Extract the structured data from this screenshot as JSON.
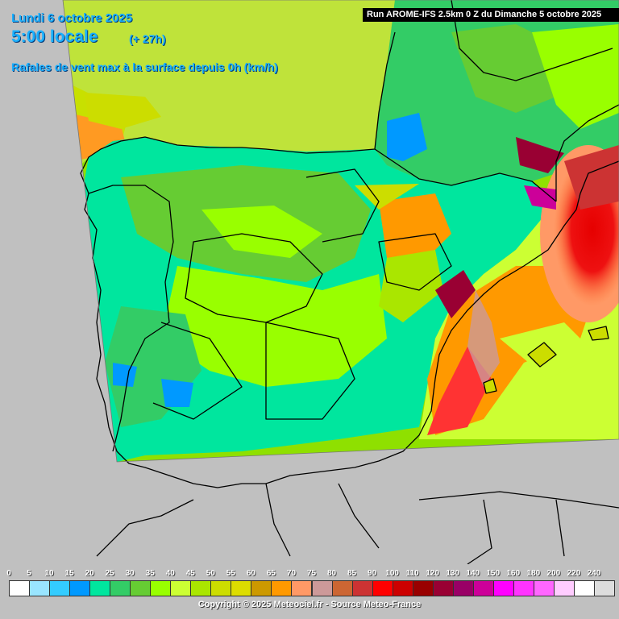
{
  "header": {
    "date": "Lundi 6 octobre 2025",
    "time": "5:00 locale",
    "offset": "(+ 27h)",
    "parameter": "Rafales de vent max à la surface depuis 0h (km/h)",
    "run": "Run AROME-IFS 2.5km 0 Z du Dimanche 5 octobre 2025"
  },
  "legend": {
    "ticks": [
      "0",
      "5",
      "10",
      "15",
      "20",
      "25",
      "30",
      "35",
      "40",
      "45",
      "50",
      "55",
      "60",
      "65",
      "70",
      "75",
      "80",
      "85",
      "90",
      "100",
      "110",
      "120",
      "130",
      "140",
      "150",
      "160",
      "180",
      "200",
      "220",
      "240"
    ],
    "colors": [
      "#ffffff",
      "#99e5ff",
      "#33ccff",
      "#0099ff",
      "#00e69e",
      "#33cc66",
      "#66cc33",
      "#99ff00",
      "#ccff33",
      "#aae600",
      "#ccdd00",
      "#dddd00",
      "#cc9900",
      "#ff9900",
      "#ff9966",
      "#cc9999",
      "#cc6633",
      "#cc3333",
      "#ff0000",
      "#cc0000",
      "#990000",
      "#990033",
      "#990066",
      "#cc0099",
      "#ff00ff",
      "#ff33ff",
      "#ff66ff",
      "#ffccff",
      "#ffffff",
      "#dddddd"
    ]
  },
  "footer": {
    "copyright": "Copyright © 2025 Meteociel.fr - Source Meteo-France"
  }
}
